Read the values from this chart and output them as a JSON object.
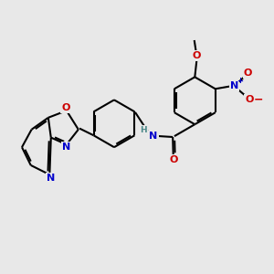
{
  "background_color": "#e8e8e8",
  "bond_color": "#000000",
  "bond_lw": 1.5,
  "atom_colors": {
    "N": "#0000cc",
    "O": "#cc0000",
    "H": "#4a8888",
    "C": "#000000"
  },
  "font_size": 8.0,
  "fig_size": [
    3.0,
    3.0
  ],
  "dpi": 100,
  "xlim": [
    0,
    10
  ],
  "ylim": [
    0,
    10
  ]
}
